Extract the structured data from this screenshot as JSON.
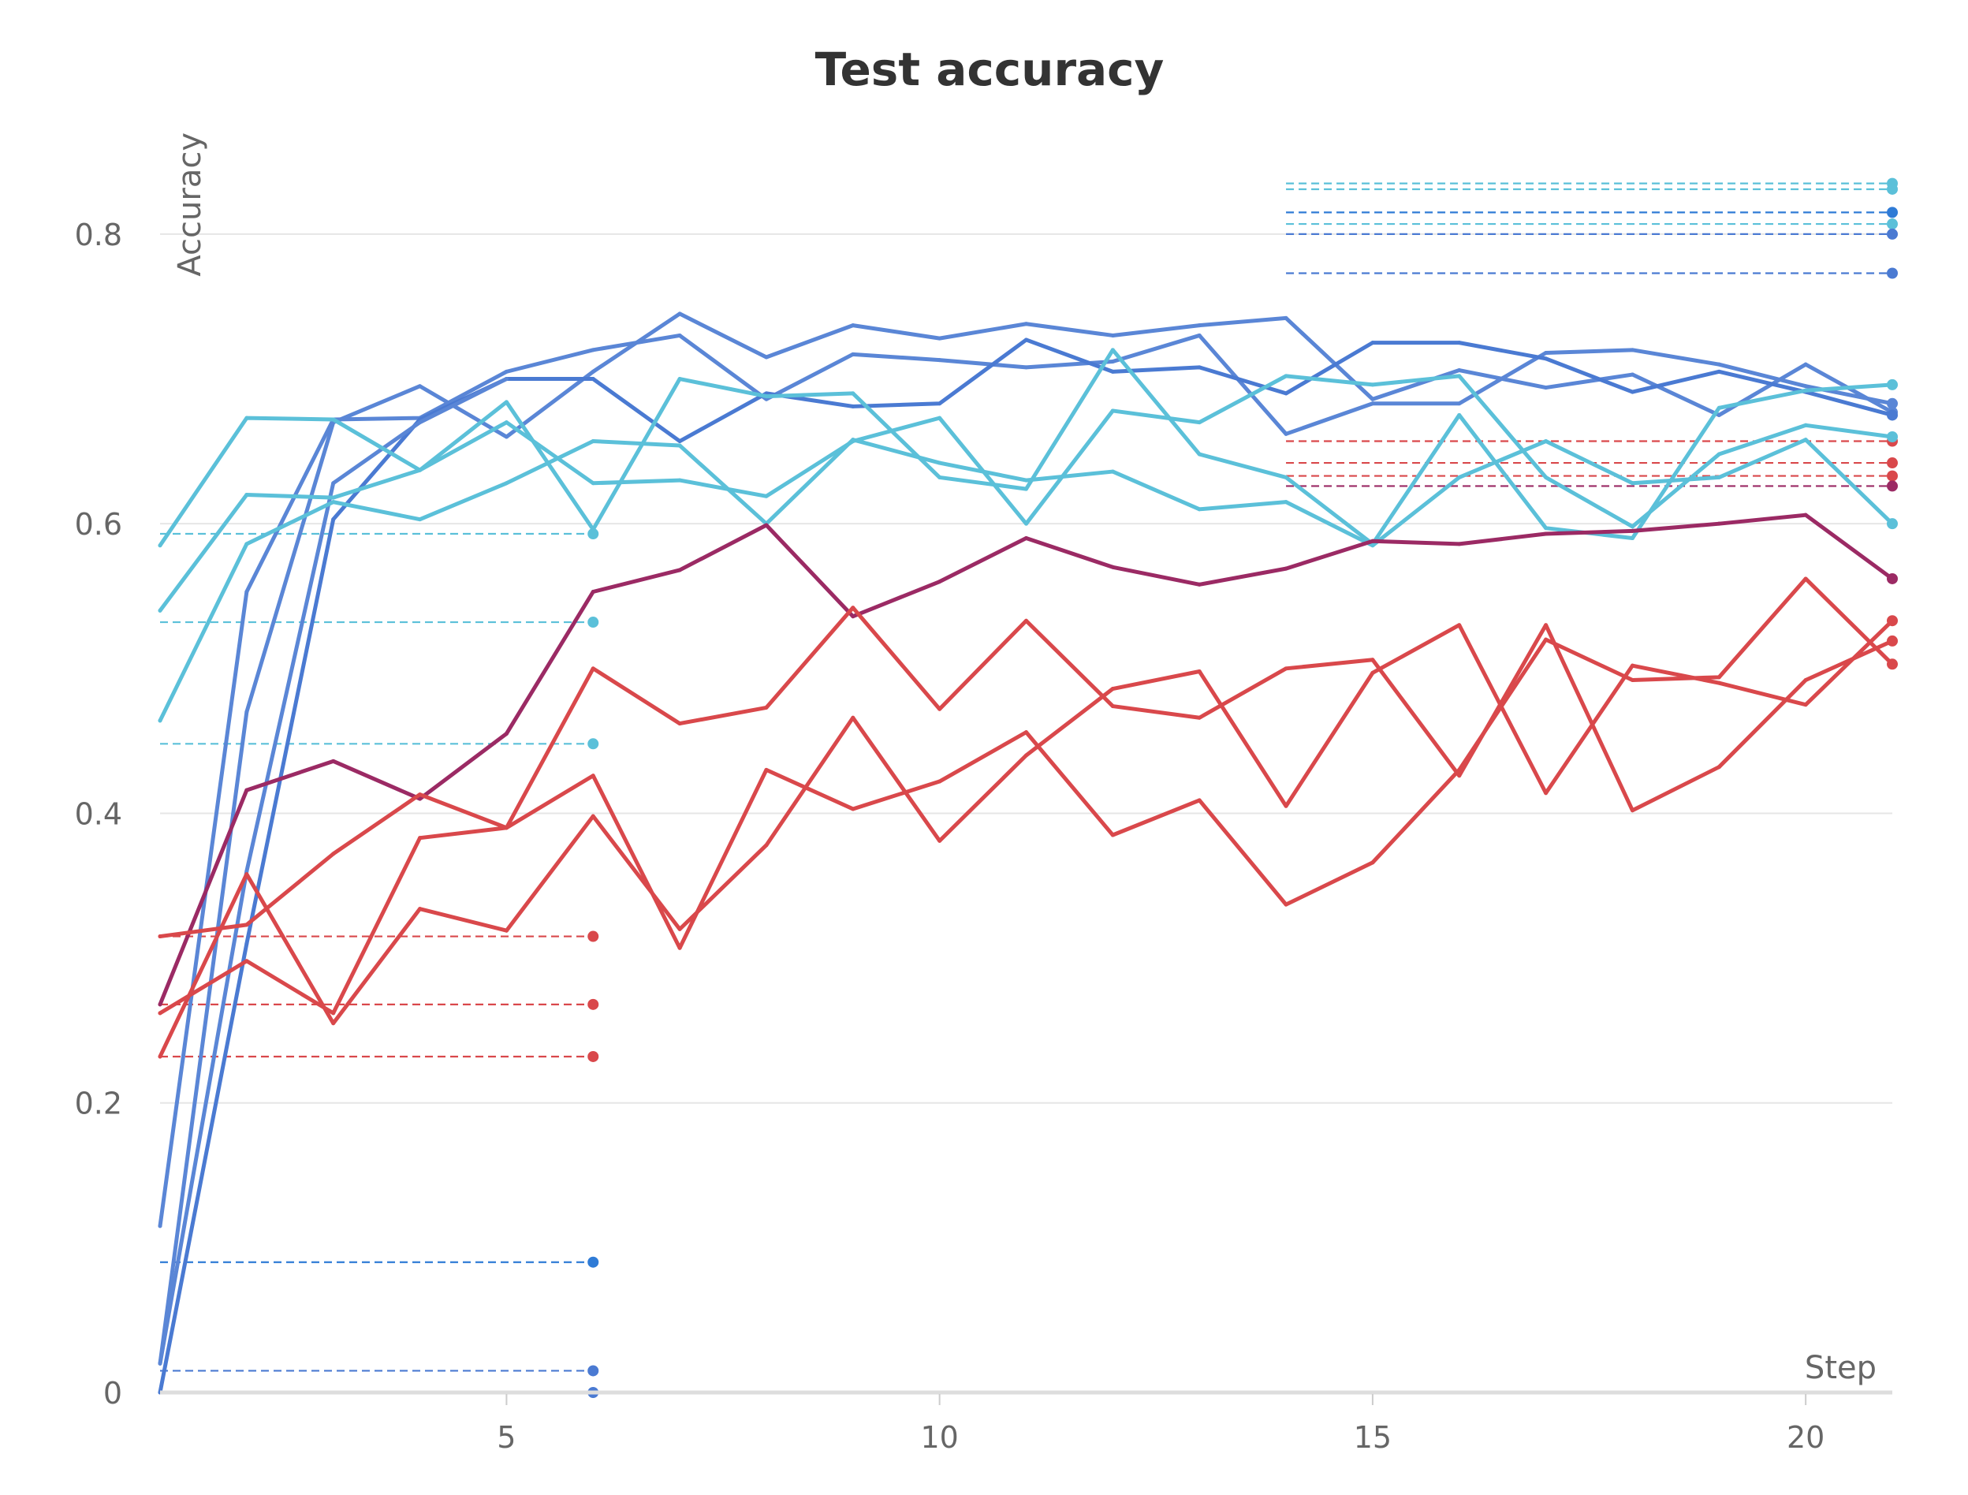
{
  "chart_data": {
    "type": "line",
    "title": "Test accuracy",
    "xlabel": "Step",
    "ylabel": "Accuracy",
    "xlim": [
      1,
      21
    ],
    "ylim": [
      0,
      0.88
    ],
    "x_ticks": [
      5,
      10,
      15,
      20
    ],
    "y_ticks": [
      0,
      0.2,
      0.4,
      0.6,
      0.8
    ],
    "y_tick_labels": [
      "0",
      "0.2",
      "0.4",
      "0.6",
      "0.8"
    ],
    "grid": true,
    "x": [
      1,
      2,
      3,
      4,
      5,
      6,
      7,
      8,
      9,
      10,
      11,
      12,
      13,
      14,
      15,
      16,
      17,
      18,
      19,
      20,
      21
    ],
    "series": [
      {
        "color": "#5a86d6",
        "values": [
          0.02,
          0.47,
          0.67,
          0.695,
          0.66,
          0.705,
          0.745,
          0.715,
          0.737,
          0.728,
          0.738,
          0.73,
          0.737,
          0.742,
          0.686,
          0.706,
          0.694,
          0.703,
          0.675,
          0.71,
          0.677
        ]
      },
      {
        "color": "#5a86d6",
        "values": [
          0.115,
          0.553,
          0.672,
          0.673,
          0.705,
          0.72,
          0.73,
          0.686,
          0.717,
          0.713,
          0.708,
          0.712,
          0.73,
          0.662,
          0.683,
          0.683,
          0.718,
          0.72,
          0.71,
          0.695,
          0.683
        ]
      },
      {
        "color": "#4a7ad2",
        "values": [
          0.0,
          0.31,
          0.603,
          0.672,
          0.7,
          0.7,
          0.657,
          0.69,
          0.681,
          0.683,
          0.727,
          0.705,
          0.708,
          0.69,
          0.725,
          0.725,
          0.714,
          0.691,
          0.705,
          0.691,
          0.675
        ]
      },
      {
        "color": "#5a86d6",
        "values": [
          0.02,
          0.36,
          0.628,
          0.67,
          0.7,
          null,
          null,
          null,
          null,
          null,
          null,
          null,
          null,
          null,
          null,
          null,
          null,
          null,
          null,
          null,
          null
        ]
      },
      {
        "color": "#5bc0d9",
        "values": [
          0.585,
          0.673,
          0.672,
          0.637,
          0.684,
          0.596,
          0.7,
          0.688,
          0.69,
          0.632,
          0.624,
          0.72,
          0.648,
          0.632,
          0.586,
          0.675,
          0.597,
          0.59,
          0.68,
          0.692,
          0.696
        ]
      },
      {
        "color": "#5bc0d9",
        "values": [
          0.54,
          0.62,
          0.618,
          0.637,
          0.67,
          0.628,
          0.63,
          0.619,
          0.657,
          0.673,
          0.6,
          0.678,
          0.67,
          0.702,
          0.696,
          0.702,
          0.632,
          0.598,
          0.648,
          0.668,
          0.66
        ]
      },
      {
        "color": "#5bc0d9",
        "values": [
          0.464,
          0.586,
          0.615,
          0.603,
          0.628,
          0.657,
          0.654,
          0.6,
          0.658,
          0.642,
          0.63,
          0.636,
          0.61,
          0.615,
          0.585,
          0.632,
          0.657,
          0.628,
          0.632,
          0.658,
          0.6
        ]
      },
      {
        "color": "#9b2a64",
        "values": [
          0.268,
          0.416,
          0.436,
          0.41,
          0.455,
          0.553,
          0.568,
          0.599,
          0.536,
          0.56,
          0.59,
          0.57,
          0.558,
          0.569,
          0.588,
          0.586,
          0.593,
          0.595,
          0.6,
          0.606,
          0.562
        ]
      },
      {
        "color": "#d9484b",
        "values": [
          0.315,
          0.323,
          0.372,
          0.413,
          0.39,
          0.426,
          0.307,
          0.43,
          0.403,
          0.422,
          0.456,
          0.385,
          0.409,
          0.337,
          0.366,
          0.43,
          0.52,
          0.492,
          0.494,
          0.562,
          0.503
        ]
      },
      {
        "color": "#d9484b",
        "values": [
          0.262,
          0.298,
          0.262,
          0.383,
          0.39,
          0.5,
          0.462,
          0.473,
          0.542,
          0.472,
          0.533,
          0.474,
          0.466,
          0.5,
          0.506,
          0.426,
          0.53,
          0.402,
          0.432,
          0.492,
          0.519
        ]
      },
      {
        "color": "#d9484b",
        "values": [
          0.232,
          0.358,
          0.255,
          0.334,
          0.319,
          0.398,
          0.32,
          0.378,
          0.466,
          0.381,
          0.44,
          0.486,
          0.498,
          0.405,
          0.497,
          0.53,
          0.414,
          0.502,
          0.49,
          0.475,
          0.533
        ]
      }
    ],
    "reference_lines": [
      {
        "color": "#5bc0d9",
        "y": 0.593,
        "x_start": 1,
        "x_end": 6
      },
      {
        "color": "#5bc0d9",
        "y": 0.532,
        "x_start": 1,
        "x_end": 6
      },
      {
        "color": "#5bc0d9",
        "y": 0.448,
        "x_start": 1,
        "x_end": 6
      },
      {
        "color": "#d9484b",
        "y": 0.315,
        "x_start": 1,
        "x_end": 6
      },
      {
        "color": "#d9484b",
        "y": 0.268,
        "x_start": 1,
        "x_end": 6
      },
      {
        "color": "#d9484b",
        "y": 0.232,
        "x_start": 1,
        "x_end": 6
      },
      {
        "color": "#2f7bd6",
        "y": 0.09,
        "x_start": 1,
        "x_end": 6
      },
      {
        "color": "#4a7ad2",
        "y": 0.015,
        "x_start": 1,
        "x_end": 6
      },
      {
        "color": "#5bc0d9",
        "y": 0.835,
        "x_start": 14,
        "x_end": 21
      },
      {
        "color": "#5bc0d9",
        "y": 0.831,
        "x_start": 14,
        "x_end": 21
      },
      {
        "color": "#2f7bd6",
        "y": 0.815,
        "x_start": 14,
        "x_end": 21
      },
      {
        "color": "#5bc0d9",
        "y": 0.807,
        "x_start": 14,
        "x_end": 21
      },
      {
        "color": "#4a7ad2",
        "y": 0.8,
        "x_start": 14,
        "x_end": 21
      },
      {
        "color": "#4a7ad2",
        "y": 0.773,
        "x_start": 14,
        "x_end": 21
      },
      {
        "color": "#d9484b",
        "y": 0.657,
        "x_start": 14,
        "x_end": 21
      },
      {
        "color": "#d9484b",
        "y": 0.642,
        "x_start": 14,
        "x_end": 21
      },
      {
        "color": "#d9484b",
        "y": 0.633,
        "x_start": 14,
        "x_end": 21
      },
      {
        "color": "#9b2a64",
        "y": 0.626,
        "x_start": 14,
        "x_end": 21
      }
    ],
    "end_markers": [
      {
        "color": "#4a7ad2",
        "x": 6,
        "y": 0.0
      }
    ]
  }
}
